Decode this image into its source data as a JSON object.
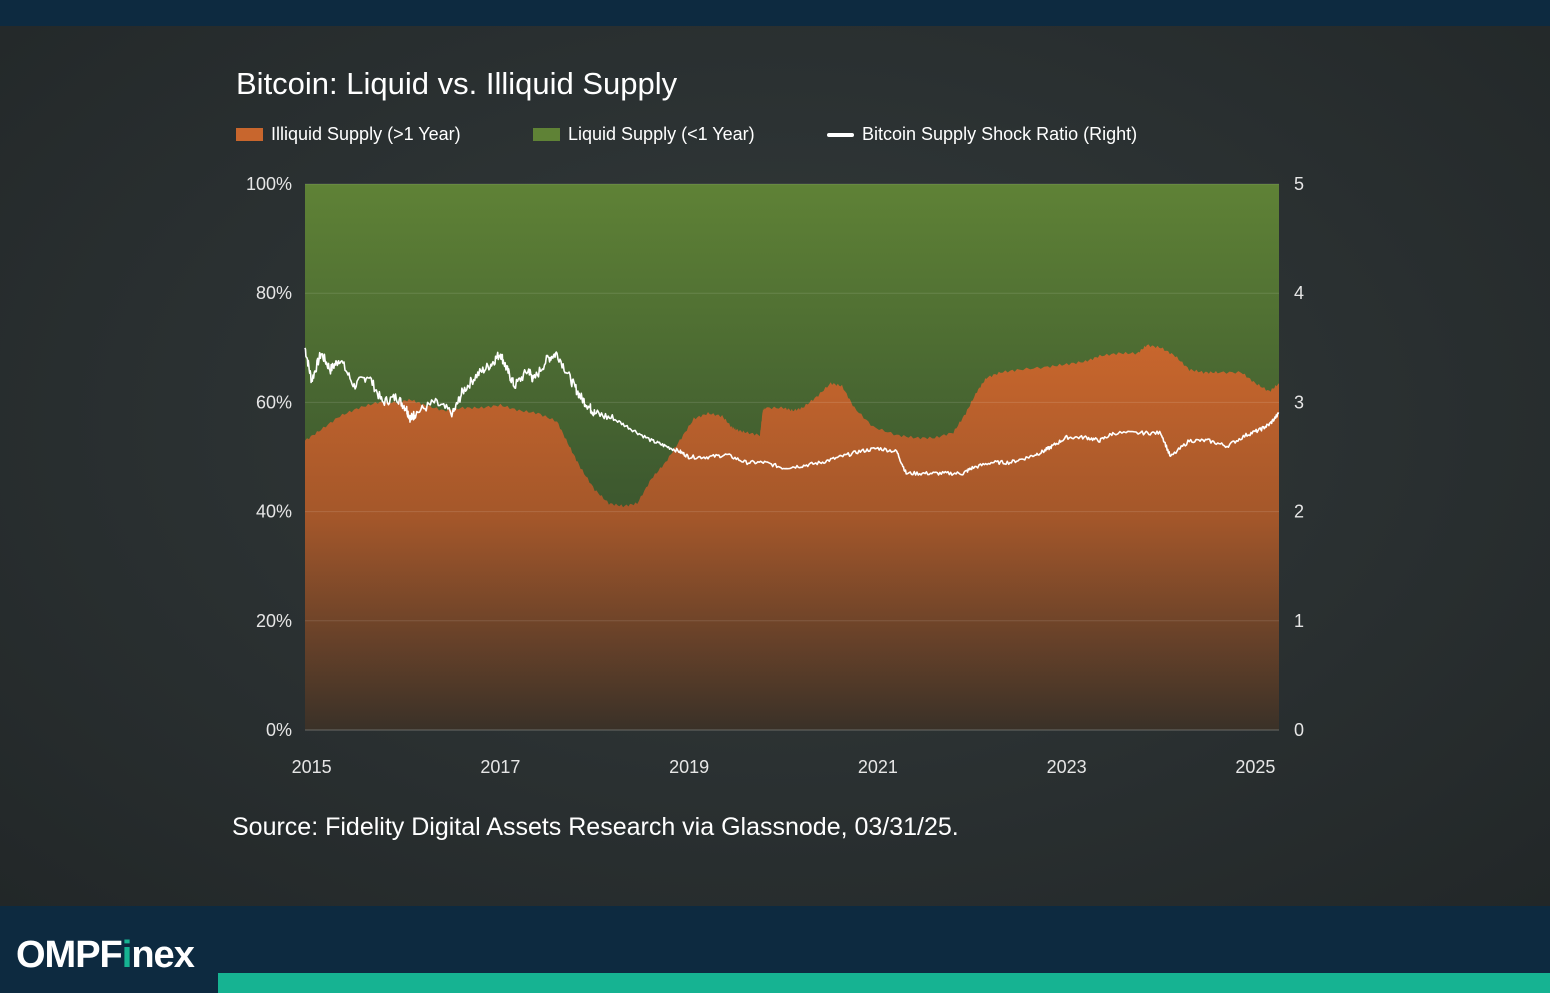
{
  "brand": {
    "prefix": "OMPF",
    "accent": "i",
    "suffix": "nex",
    "accent_color": "#16b392"
  },
  "colors": {
    "illiquid": "#c8662d",
    "liquid": "#5f8236",
    "ratio_line": "#ffffff",
    "header": "#0d2a40",
    "accent_bar": "#16b392"
  },
  "chart_data": {
    "type": "area",
    "title": "Bitcoin: Liquid vs. Illiquid Supply",
    "source": "Source: Fidelity Digital Assets Research via Glassnode, 03/31/25.",
    "x_ticks": [
      "2015",
      "2017",
      "2019",
      "2021",
      "2023",
      "2025"
    ],
    "x_tick_values": [
      2015,
      2017,
      2019,
      2021,
      2023,
      2025
    ],
    "xlim": [
      2014.93,
      2025.25
    ],
    "y_left_ticks": [
      "0%",
      "20%",
      "40%",
      "60%",
      "80%",
      "100%"
    ],
    "y_left_lim": [
      0,
      100
    ],
    "y_right_ticks": [
      "0",
      "1",
      "2",
      "3",
      "4",
      "5"
    ],
    "y_right_lim": [
      0,
      5
    ],
    "series": [
      {
        "name": "Illiquid Supply (>1 Year)",
        "axis": "left",
        "unit": "%",
        "x": [
          2014.93,
          2015.1,
          2015.3,
          2015.5,
          2015.7,
          2015.9,
          2016.05,
          2016.2,
          2016.4,
          2016.6,
          2016.8,
          2017.0,
          2017.2,
          2017.4,
          2017.6,
          2017.73,
          2017.85,
          2018.0,
          2018.15,
          2018.3,
          2018.45,
          2018.6,
          2018.75,
          2018.9,
          2019.05,
          2019.2,
          2019.35,
          2019.45,
          2019.5,
          2019.6,
          2019.75,
          2019.78,
          2019.8,
          2020.0,
          2020.1,
          2020.2,
          2020.35,
          2020.5,
          2020.62,
          2020.75,
          2020.95,
          2021.2,
          2021.4,
          2021.6,
          2021.8,
          2021.93,
          2022.05,
          2022.15,
          2022.3,
          2022.5,
          2022.8,
          2023.0,
          2023.2,
          2023.35,
          2023.55,
          2023.75,
          2023.85,
          2024.0,
          2024.15,
          2024.3,
          2024.45,
          2024.6,
          2024.85,
          2025.0,
          2025.15,
          2025.25
        ],
        "values": [
          53,
          55,
          57.5,
          59,
          60,
          60,
          60.5,
          59.5,
          58.5,
          59,
          59,
          59.5,
          58.5,
          58,
          56.5,
          52,
          48,
          44,
          41.5,
          41,
          41.5,
          46,
          49,
          53,
          57,
          58,
          57.5,
          55.5,
          55,
          54.5,
          54,
          58.5,
          59,
          59,
          58.5,
          59,
          61,
          63.5,
          63,
          59,
          55.5,
          54,
          53.5,
          53.5,
          54.5,
          58,
          62,
          64.5,
          65.5,
          66,
          66.5,
          67,
          67.5,
          68.5,
          69,
          69,
          70.5,
          70,
          68.5,
          66,
          65.5,
          65.5,
          65.5,
          63.5,
          62,
          63.5
        ]
      },
      {
        "name": "Liquid Supply (<1 Year)",
        "axis": "left",
        "unit": "%",
        "note": "complement of illiquid supply up to 100%"
      },
      {
        "name": "Bitcoin Supply Shock Ratio (Right)",
        "axis": "right",
        "x": [
          2014.93,
          2015.0,
          2015.1,
          2015.2,
          2015.3,
          2015.45,
          2015.6,
          2015.75,
          2015.9,
          2016.0,
          2016.05,
          2016.1,
          2016.3,
          2016.5,
          2016.6,
          2016.75,
          2016.9,
          2017.0,
          2017.07,
          2017.15,
          2017.3,
          2017.35,
          2017.5,
          2017.6,
          2017.75,
          2017.85,
          2017.95,
          2018.0,
          2018.2,
          2018.4,
          2018.6,
          2018.75,
          2018.9,
          2019.0,
          2019.2,
          2019.4,
          2019.6,
          2019.8,
          2020.0,
          2020.2,
          2020.4,
          2020.6,
          2020.8,
          2021.0,
          2021.2,
          2021.3,
          2021.5,
          2021.7,
          2021.9,
          2022.0,
          2022.2,
          2022.4,
          2022.6,
          2022.75,
          2022.85,
          2023.0,
          2023.2,
          2023.35,
          2023.5,
          2023.8,
          2024.0,
          2024.1,
          2024.3,
          2024.5,
          2024.7,
          2024.9,
          2025.05,
          2025.15,
          2025.25
        ],
        "values": [
          3.5,
          3.2,
          3.45,
          3.3,
          3.4,
          3.15,
          3.25,
          3.0,
          3.05,
          2.95,
          2.85,
          2.9,
          3.0,
          2.9,
          3.1,
          3.25,
          3.35,
          3.45,
          3.3,
          3.15,
          3.3,
          3.2,
          3.4,
          3.45,
          3.2,
          3.05,
          2.95,
          2.9,
          2.85,
          2.75,
          2.65,
          2.6,
          2.55,
          2.5,
          2.5,
          2.52,
          2.45,
          2.45,
          2.4,
          2.42,
          2.45,
          2.5,
          2.55,
          2.58,
          2.55,
          2.35,
          2.35,
          2.35,
          2.35,
          2.4,
          2.45,
          2.45,
          2.5,
          2.55,
          2.6,
          2.68,
          2.68,
          2.65,
          2.72,
          2.72,
          2.72,
          2.5,
          2.65,
          2.65,
          2.6,
          2.7,
          2.75,
          2.8,
          2.9
        ]
      }
    ],
    "legend": [
      "Illiquid Supply (>1 Year)",
      "Liquid Supply (<1 Year)",
      "Bitcoin Supply Shock Ratio (Right)"
    ],
    "legend_position": "top-left",
    "grid": true
  }
}
